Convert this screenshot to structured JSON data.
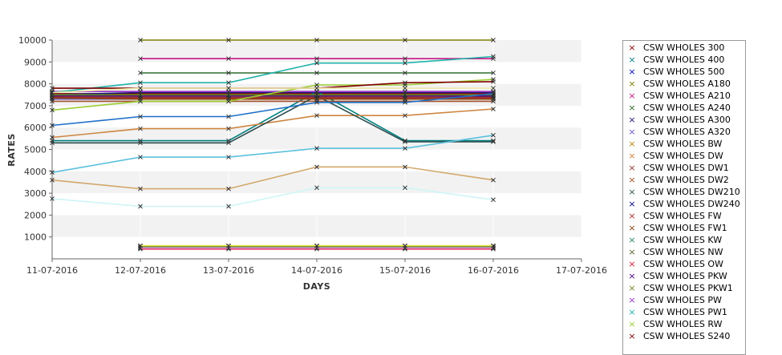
{
  "chart_data": {
    "type": "line",
    "x": [
      "11-07-2016",
      "12-07-2016",
      "13-07-2016",
      "14-07-2016",
      "15-07-2016",
      "16-07-2016",
      "17-07-2016"
    ],
    "xlabel": "DAYS",
    "ylabel": "RATES",
    "ylim": [
      0,
      10000
    ],
    "yticks": [
      1000,
      2000,
      3000,
      4000,
      5000,
      6000,
      7000,
      8000,
      9000,
      10000
    ],
    "grid": "alternating horizontal bands",
    "legend_position": "right",
    "series": [
      {
        "name": "CSW WHOLES 300",
        "color": "#8B0000",
        "values": [
          7550,
          7550,
          7550,
          7550,
          7550,
          7550,
          null
        ]
      },
      {
        "name": "CSW WHOLES 400",
        "color": "#008080",
        "values": [
          5400,
          5400,
          5400,
          7650,
          5400,
          5400,
          null
        ]
      },
      {
        "name": "CSW WHOLES 500",
        "color": "#0000CD",
        "values": [
          7350,
          7350,
          7350,
          7350,
          7350,
          7450,
          null
        ]
      },
      {
        "name": "CSW WHOLES A180",
        "color": "#808000",
        "values": [
          null,
          10000,
          10000,
          10000,
          10000,
          10000,
          null
        ]
      },
      {
        "name": "CSW WHOLES A210",
        "color": "#C71585",
        "values": [
          null,
          9150,
          9150,
          9150,
          9150,
          9150,
          null
        ]
      },
      {
        "name": "CSW WHOLES A240",
        "color": "#2E6B2E",
        "values": [
          null,
          8500,
          8500,
          8500,
          8500,
          8500,
          null
        ]
      },
      {
        "name": "CSW WHOLES A300",
        "color": "#191970",
        "values": [
          7500,
          7600,
          7600,
          7600,
          7600,
          7600,
          null
        ]
      },
      {
        "name": "CSW WHOLES A320",
        "color": "#6A5ACD",
        "values": [
          7300,
          7300,
          7300,
          7300,
          7300,
          7300,
          null
        ]
      },
      {
        "name": "CSW WHOLES BW",
        "color": "#B8860B",
        "values": [
          null,
          580,
          580,
          580,
          580,
          580,
          null
        ]
      },
      {
        "name": "CSW WHOLES DW",
        "color": "#CD853F",
        "values": [
          5550,
          5950,
          5950,
          6550,
          6550,
          6850,
          null
        ]
      },
      {
        "name": "CSW WHOLES DW1",
        "color": "#8B3A3A",
        "values": [
          7400,
          7400,
          7400,
          7400,
          7400,
          7400,
          null
        ]
      },
      {
        "name": "CSW WHOLES DW2",
        "color": "#A0522D",
        "values": [
          7200,
          7200,
          7200,
          7200,
          7200,
          7200,
          null
        ]
      },
      {
        "name": "CSW WHOLES DW210",
        "color": "#2F4F4F",
        "values": [
          5300,
          5300,
          5300,
          7450,
          5350,
          5350,
          null
        ]
      },
      {
        "name": "CSW WHOLES DW240",
        "color": "#000080",
        "values": [
          7500,
          7500,
          7500,
          7500,
          7500,
          7500,
          null
        ]
      },
      {
        "name": "CSW WHOLES FW",
        "color": "#A52A2A",
        "values": [
          7400,
          7350,
          7350,
          7350,
          7350,
          7350,
          null
        ]
      },
      {
        "name": "CSW WHOLES FW1",
        "color": "#8B4513",
        "values": [
          7350,
          7300,
          7300,
          7300,
          7300,
          7300,
          null
        ]
      },
      {
        "name": "CSW WHOLES KW",
        "color": "#2E8B57",
        "values": [
          null,
          500,
          500,
          500,
          500,
          500,
          null
        ]
      },
      {
        "name": "CSW WHOLES NW",
        "color": "#556B2F",
        "values": [
          null,
          550,
          550,
          550,
          550,
          550,
          null
        ]
      },
      {
        "name": "CSW WHOLES OW",
        "color": "#DC143C",
        "values": [
          null,
          450,
          450,
          450,
          450,
          450,
          null
        ]
      },
      {
        "name": "CSW WHOLES PKW",
        "color": "#4B0082",
        "values": [
          7450,
          7450,
          7450,
          7450,
          7450,
          7450,
          null
        ]
      },
      {
        "name": "CSW WHOLES PKW1",
        "color": "#6B8E23",
        "values": [
          7500,
          7500,
          7500,
          7500,
          7500,
          7500,
          null
        ]
      },
      {
        "name": "CSW WHOLES PW",
        "color": "#9932CC",
        "values": [
          7650,
          7650,
          7650,
          7650,
          7650,
          7650,
          null
        ]
      },
      {
        "name": "CSW WHOLES PW1",
        "color": "#20B2AA",
        "values": [
          7600,
          8050,
          8050,
          8950,
          8950,
          9250,
          null
        ]
      },
      {
        "name": "CSW WHOLES RW",
        "color": "#9ACD32",
        "values": [
          6800,
          7200,
          7200,
          7950,
          7950,
          8200,
          null
        ]
      },
      {
        "name": "CSW WHOLES S240",
        "color": "#800000",
        "values": [
          7800,
          7800,
          7800,
          7800,
          8050,
          8100,
          null
        ]
      },
      {
        "name": "",
        "color": "#1E6FC8",
        "values": [
          6100,
          6500,
          6500,
          7150,
          7150,
          7550,
          null
        ]
      },
      {
        "name": "",
        "color": "#5BC0DE",
        "values": [
          3950,
          4650,
          4650,
          5050,
          5050,
          5650,
          null
        ]
      },
      {
        "name": "",
        "color": "#D2A86C",
        "values": [
          3600,
          3200,
          3200,
          4200,
          4200,
          3600,
          null
        ]
      },
      {
        "name": "",
        "color": "#CFF5F7",
        "values": [
          2750,
          2400,
          2400,
          3250,
          3250,
          2700,
          null
        ]
      },
      {
        "name": "",
        "color": "#EEE8AA",
        "values": [
          7600,
          7800,
          7800,
          7800,
          7800,
          7800,
          null
        ]
      },
      {
        "name": "",
        "color": "#E2A8E8",
        "values": [
          null,
          500,
          500,
          500,
          500,
          500,
          null
        ]
      },
      {
        "name": "",
        "color": "#E8E84A",
        "values": [
          null,
          600,
          600,
          600,
          600,
          600,
          null
        ]
      }
    ]
  }
}
